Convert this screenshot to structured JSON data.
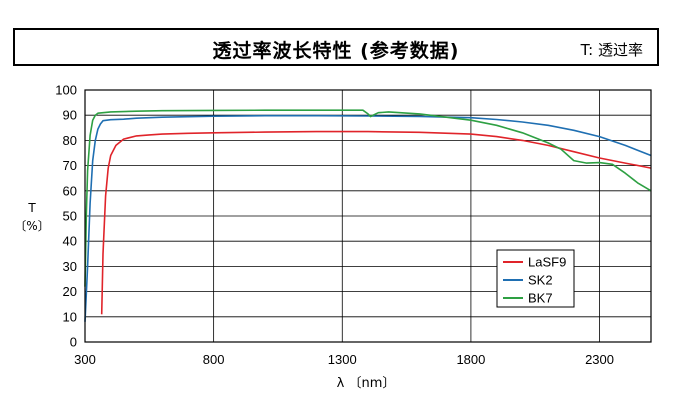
{
  "chart_data": {
    "type": "line",
    "title": "透过率波长特性 (参考数据)",
    "note": "T: 透过率",
    "ylabel_top": "T",
    "ylabel_unit": "〔%〕",
    "xlabel": "λ 〔nm〕",
    "xlim": [
      300,
      2500
    ],
    "ylim": [
      0,
      100
    ],
    "x_ticks": [
      300,
      800,
      1300,
      1800,
      2300
    ],
    "y_ticks": [
      0,
      10,
      20,
      30,
      40,
      50,
      60,
      70,
      80,
      90,
      100
    ],
    "grid": true,
    "legend_position": "right-middle",
    "series": [
      {
        "name": "LaSF9",
        "color": "#e0242a",
        "x": [
          365,
          370,
          380,
          390,
          400,
          420,
          450,
          500,
          550,
          600,
          700,
          800,
          1000,
          1200,
          1400,
          1600,
          1800,
          1900,
          2000,
          2100,
          2200,
          2300,
          2400,
          2500
        ],
        "y": [
          11,
          35,
          58,
          69,
          74,
          78,
          80.5,
          81.8,
          82.2,
          82.5,
          82.8,
          83,
          83.3,
          83.5,
          83.5,
          83.2,
          82.5,
          81.5,
          80,
          78,
          75.5,
          73,
          71,
          69
        ]
      },
      {
        "name": "SK2",
        "color": "#1f6fb2",
        "x": [
          300,
          310,
          320,
          330,
          340,
          350,
          360,
          370,
          400,
          450,
          500,
          600,
          800,
          1000,
          1200,
          1400,
          1600,
          1800,
          1900,
          2000,
          2100,
          2200,
          2300,
          2400,
          2500
        ],
        "y": [
          8,
          30,
          55,
          72,
          80,
          84.5,
          86.5,
          87.8,
          88.2,
          88.4,
          88.8,
          89.2,
          89.6,
          89.8,
          89.8,
          89.7,
          89.5,
          89,
          88.3,
          87.3,
          86,
          84,
          81.5,
          78,
          74
        ]
      },
      {
        "name": "BK7",
        "color": "#2ea043",
        "x": [
          300,
          305,
          310,
          320,
          330,
          340,
          350,
          370,
          400,
          500,
          600,
          800,
          1000,
          1200,
          1380,
          1400,
          1410,
          1420,
          1440,
          1480,
          1600,
          1800,
          1900,
          2000,
          2100,
          2150,
          2200,
          2250,
          2300,
          2350,
          2400,
          2450,
          2500
        ],
        "y": [
          22,
          50,
          68,
          82,
          88,
          90,
          90.8,
          91,
          91.3,
          91.6,
          91.8,
          91.9,
          92,
          92,
          92,
          90.5,
          89.5,
          90,
          91,
          91.3,
          90.5,
          88,
          86,
          83,
          79,
          76.5,
          72,
          71,
          71.2,
          70.5,
          67,
          63,
          60
        ]
      }
    ]
  }
}
